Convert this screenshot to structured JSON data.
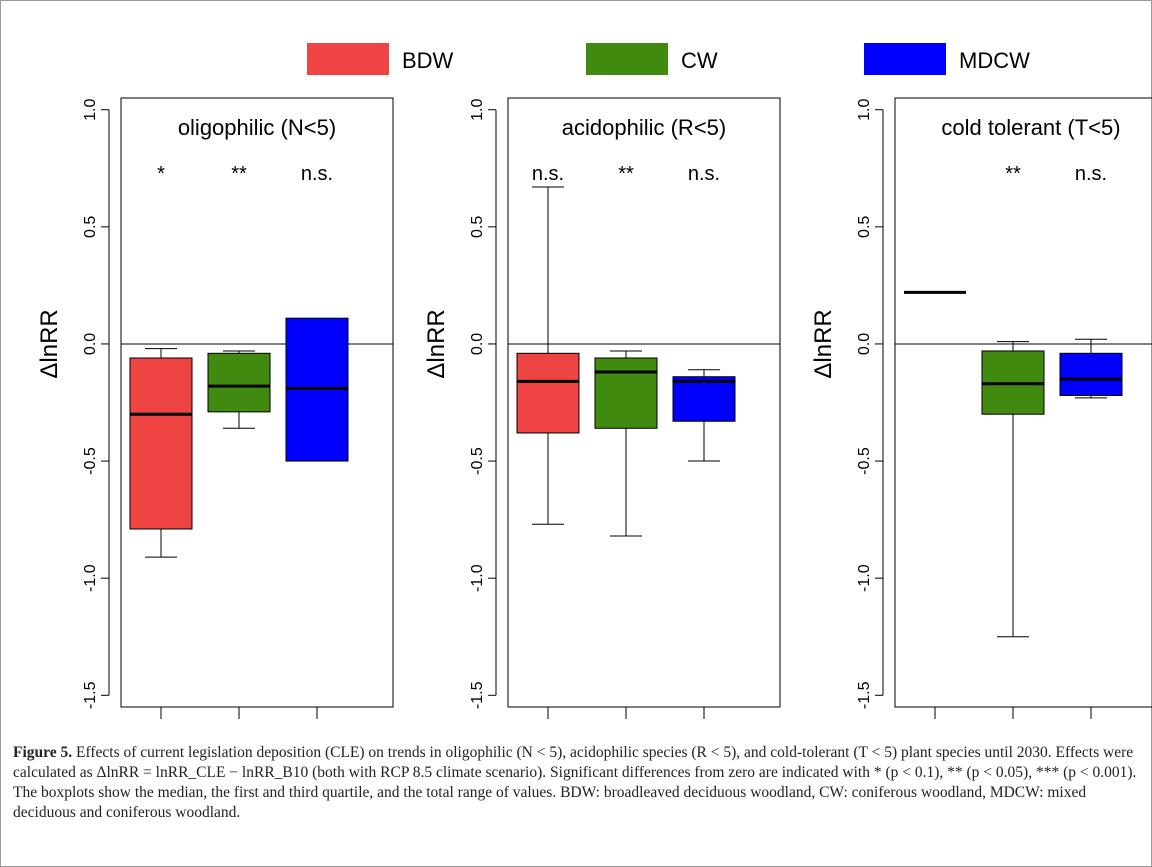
{
  "legend": [
    {
      "label": "BDW",
      "color": "#ee4444"
    },
    {
      "label": "CW",
      "color": "#418a10"
    },
    {
      "label": "MDCW",
      "color": "#0000ff"
    }
  ],
  "chart_data": [
    {
      "type": "boxplot",
      "title": "oligophilic (N<5)",
      "ylabel": "ΔlnRR",
      "ylim": [
        -1.55,
        1.05
      ],
      "yticks": [
        "-1.5",
        "-1.0",
        "-0.5",
        "0.0",
        "0.5",
        "1.0"
      ],
      "reference_line": 0,
      "boxes": [
        {
          "series": "BDW",
          "min": -0.91,
          "q1": -0.79,
          "median": -0.3,
          "q3": -0.06,
          "max": -0.02,
          "significance": "*"
        },
        {
          "series": "CW",
          "min": -0.36,
          "q1": -0.29,
          "median": -0.18,
          "q3": -0.04,
          "max": -0.03,
          "significance": "**"
        },
        {
          "series": "MDCW",
          "min": -0.5,
          "q1": -0.5,
          "median": -0.19,
          "q3": 0.11,
          "max": 0.11,
          "significance": "n.s."
        }
      ]
    },
    {
      "type": "boxplot",
      "title": "acidophilic (R<5)",
      "ylabel": "ΔlnRR",
      "ylim": [
        -1.55,
        1.05
      ],
      "yticks": [
        "-1.5",
        "-1.0",
        "-0.5",
        "0.0",
        "0.5",
        "1.0"
      ],
      "reference_line": 0,
      "boxes": [
        {
          "series": "BDW",
          "min": -0.77,
          "q1": -0.38,
          "median": -0.16,
          "q3": -0.04,
          "max": 0.67,
          "significance": "n.s."
        },
        {
          "series": "CW",
          "min": -0.82,
          "q1": -0.36,
          "median": -0.12,
          "q3": -0.06,
          "max": -0.03,
          "significance": "**"
        },
        {
          "series": "MDCW",
          "min": -0.5,
          "q1": -0.33,
          "median": -0.16,
          "q3": -0.14,
          "max": -0.11,
          "significance": "n.s."
        }
      ]
    },
    {
      "type": "boxplot",
      "title": "cold tolerant (T<5)",
      "ylabel": "ΔlnRR",
      "ylim": [
        -1.55,
        1.05
      ],
      "yticks": [
        "-1.5",
        "-1.0",
        "-0.5",
        "0.0",
        "0.5",
        "1.0"
      ],
      "reference_line": 0,
      "boxes": [
        {
          "series": "BDW",
          "min": 0.22,
          "q1": 0.22,
          "median": 0.22,
          "q3": 0.22,
          "max": 0.22,
          "significance": ""
        },
        {
          "series": "CW",
          "min": -1.25,
          "q1": -0.3,
          "median": -0.17,
          "q3": -0.03,
          "max": 0.01,
          "significance": "**"
        },
        {
          "series": "MDCW",
          "min": -0.23,
          "q1": -0.22,
          "median": -0.15,
          "q3": -0.04,
          "max": 0.02,
          "significance": "n.s."
        }
      ]
    }
  ],
  "caption": {
    "label": "Figure 5.",
    "text": "Effects of current legislation deposition (CLE) on trends in oligophilic (N < 5), acidophilic species (R < 5), and cold-tolerant (T < 5) plant species until 2030. Effects were calculated as ΔlnRR = lnRR_CLE − lnRR_B10 (both with RCP 8.5 climate scenario). Significant differences from zero are indicated with * (p < 0.1), ** (p < 0.05), *** (p < 0.001). The boxplots show the median, the first and third quartile, and the total range of values. BDW: broadleaved deciduous woodland, CW: coniferous woodland, MDCW: mixed deciduous and coniferous woodland."
  }
}
